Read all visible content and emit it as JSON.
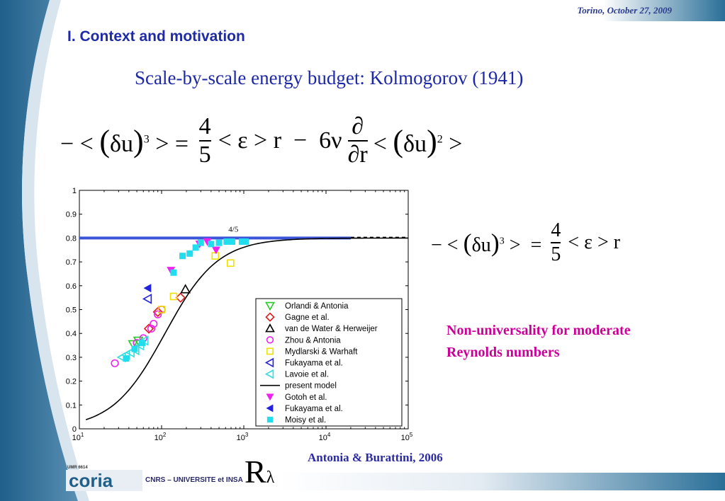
{
  "header": {
    "date_place": "Torino, October 27, 2009"
  },
  "section_title": "I. Context and motivation",
  "subtitle": "Scale-by-scale energy budget: Kolmogorov (1941)",
  "note_lines": [
    "Non-universality for moderate",
    "Reynolds numbers"
  ],
  "source": "Antonia & Burattini, 2006",
  "footer": {
    "org_text": "CNRS – UNIVERSITE et INSA",
    "logo_text": "coria",
    "logo_tag": "UMR 6614"
  },
  "chart_data": {
    "type": "scatter",
    "xscale": "log",
    "xlim": [
      10,
      100000
    ],
    "ylim": [
      0,
      1
    ],
    "x_ticks": [
      {
        "base": "10",
        "exp": "1"
      },
      {
        "base": "10",
        "exp": "2"
      },
      {
        "base": "10",
        "exp": "3"
      },
      {
        "base": "10",
        "exp": "4"
      },
      {
        "base": "10",
        "exp": "5"
      }
    ],
    "y_ticks": [
      "0",
      "0.1",
      "0.2",
      "0.3",
      "0.4",
      "0.5",
      "0.6",
      "0.7",
      "0.8",
      "0.9",
      "1"
    ],
    "xlabel": {
      "main": "R",
      "sub": "λ"
    },
    "annotations": [
      {
        "text": "4/5",
        "x": 650,
        "y": 0.815
      }
    ],
    "reference_line": {
      "value": 0.8,
      "color": "#3a55d6"
    },
    "model_curve": {
      "name": "present model",
      "type": "line"
    },
    "series": [
      {
        "name": "Orlandi & Antonia",
        "marker": "triangle-down",
        "fill": false,
        "color": "#22cc22",
        "points": [
          [
            45,
            0.355
          ],
          [
            52,
            0.37
          ]
        ]
      },
      {
        "name": "Gagne et al.",
        "marker": "diamond",
        "fill": false,
        "color": "#e01b1b",
        "points": [
          [
            70,
            0.42
          ],
          [
            90,
            0.49
          ],
          [
            170,
            0.55
          ]
        ]
      },
      {
        "name": "van de Water & Herweijer",
        "marker": "triangle-up",
        "fill": false,
        "color": "#000000",
        "points": [
          [
            195,
            0.585
          ]
        ]
      },
      {
        "name": "Zhou & Antonia",
        "marker": "circle",
        "fill": false,
        "color": "#ee22ee",
        "points": [
          [
            27,
            0.275
          ],
          [
            50,
            0.36
          ],
          [
            60,
            0.38
          ],
          [
            75,
            0.42
          ],
          [
            80,
            0.44
          ],
          [
            90,
            0.48
          ],
          [
            100,
            0.5
          ]
        ]
      },
      {
        "name": "Mydlarski & Warhaft",
        "marker": "square",
        "fill": false,
        "color": "#f0e000",
        "points": [
          [
            100,
            0.5
          ],
          [
            140,
            0.555
          ],
          [
            450,
            0.725
          ],
          [
            690,
            0.695
          ]
        ]
      },
      {
        "name": "Fukayama et al.",
        "marker": "triangle-left",
        "fill": false,
        "color": "#2222dd",
        "points": [
          [
            68,
            0.545
          ]
        ]
      },
      {
        "name": "Lavoie et al.",
        "marker": "triangle-left",
        "fill": false,
        "color": "#33dddd",
        "points": [
          [
            33,
            0.3
          ],
          [
            37,
            0.31
          ],
          [
            42,
            0.32
          ],
          [
            48,
            0.33
          ],
          [
            55,
            0.35
          ],
          [
            62,
            0.37
          ]
        ]
      },
      {
        "name": "Gotoh et al.",
        "marker": "triangle-down",
        "fill": true,
        "color": "#ee22ee",
        "points": [
          [
            130,
            0.665
          ],
          [
            290,
            0.775
          ],
          [
            360,
            0.785
          ],
          [
            460,
            0.75
          ]
        ]
      },
      {
        "name": "Fukayama et al.",
        "marker": "triangle-left",
        "fill": true,
        "color": "#2222dd",
        "points": [
          [
            68,
            0.59
          ]
        ]
      },
      {
        "name": "Moisy et al.",
        "marker": "square",
        "fill": true,
        "color": "#22ddee",
        "points": [
          [
            37,
            0.295
          ],
          [
            47,
            0.335
          ],
          [
            58,
            0.36
          ],
          [
            140,
            0.655
          ],
          [
            180,
            0.725
          ],
          [
            220,
            0.735
          ],
          [
            260,
            0.76
          ],
          [
            300,
            0.78
          ],
          [
            400,
            0.775
          ],
          [
            500,
            0.78
          ],
          [
            620,
            0.785
          ],
          [
            720,
            0.785
          ],
          [
            950,
            0.785
          ],
          [
            1050,
            0.785
          ]
        ]
      }
    ]
  }
}
